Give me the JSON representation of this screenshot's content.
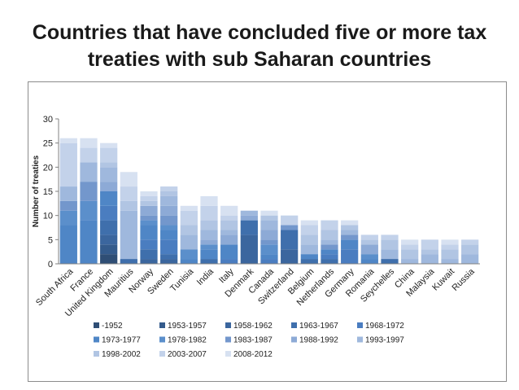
{
  "slide": {
    "title_line1": "Countries that have concluded five or more tax",
    "title_line2": "treaties with sub Saharan countries"
  },
  "chart_data": {
    "type": "bar",
    "stacked": true,
    "ylabel": "Number of treaties",
    "ylim": [
      0,
      30
    ],
    "yticks": [
      0,
      5,
      10,
      15,
      20,
      25,
      30
    ],
    "grid": false,
    "legend_position": "bottom",
    "categories": [
      "South Africa",
      "France",
      "United Kingdom",
      "Mauritius",
      "Norway",
      "Sweden",
      "Tunisia",
      "India",
      "Italy",
      "Denmark",
      "Canada",
      "Switzerland",
      "Belgium",
      "Netherlands",
      "Germany",
      "Romania",
      "Seychelles",
      "China",
      "Malaysia",
      "Kuwait",
      "Russia"
    ],
    "series": [
      {
        "name": "-1952",
        "color": "#2f4e75",
        "values": [
          0,
          0,
          2,
          0,
          0,
          0,
          0,
          0,
          0,
          0,
          0,
          0,
          0,
          0,
          0,
          0,
          0,
          0,
          0,
          0,
          0
        ]
      },
      {
        "name": "1953-1957",
        "color": "#345b8c",
        "values": [
          0,
          0,
          2,
          0,
          0,
          0,
          0,
          0,
          0,
          0,
          0,
          0,
          0,
          0,
          0,
          0,
          0,
          0,
          0,
          0,
          0
        ]
      },
      {
        "name": "1958-1962",
        "color": "#3b669e",
        "values": [
          0,
          0,
          2,
          0,
          1,
          1,
          0,
          0,
          0,
          6,
          0,
          3,
          0,
          0,
          0,
          0,
          0,
          0,
          0,
          0,
          0
        ]
      },
      {
        "name": "1963-1967",
        "color": "#3f6fac",
        "values": [
          0,
          0,
          3,
          1,
          2,
          1,
          0,
          1,
          0,
          3,
          0,
          4,
          1,
          1,
          0,
          0,
          1,
          0,
          0,
          0,
          0
        ]
      },
      {
        "name": "1968-1972",
        "color": "#4a7dc0",
        "values": [
          0,
          0,
          3,
          0,
          2,
          3,
          0,
          0,
          1,
          0,
          1,
          0,
          0,
          1,
          3,
          0,
          0,
          0,
          0,
          0,
          0
        ]
      },
      {
        "name": "1973-1977",
        "color": "#4f86c6",
        "values": [
          8,
          9,
          3,
          0,
          3,
          2,
          1,
          2,
          3,
          0,
          1,
          0,
          1,
          1,
          2,
          1,
          0,
          0,
          0,
          0,
          0
        ]
      },
      {
        "name": "1978-1982",
        "color": "#5b8fcb",
        "values": [
          3,
          4,
          0,
          0,
          1,
          1,
          2,
          1,
          0,
          0,
          2,
          0,
          0,
          0,
          0,
          1,
          0,
          0,
          0,
          0,
          0
        ]
      },
      {
        "name": "1983-1987",
        "color": "#7397cc",
        "values": [
          2,
          4,
          0,
          0,
          1,
          2,
          0,
          0,
          0,
          0,
          1,
          1,
          0,
          1,
          1,
          0,
          0,
          0,
          0,
          0,
          0
        ]
      },
      {
        "name": "1988-1992",
        "color": "#8daad6",
        "values": [
          0,
          0,
          2,
          0,
          2,
          2,
          0,
          1,
          2,
          1,
          2,
          0,
          0,
          0,
          0,
          2,
          0,
          0,
          0,
          0,
          0
        ]
      },
      {
        "name": "1993-1997",
        "color": "#9fb8dd",
        "values": [
          3,
          4,
          3,
          10,
          0,
          2,
          3,
          2,
          1,
          1,
          2,
          0,
          2,
          1,
          1,
          0,
          2,
          1,
          2,
          1,
          2
        ]
      },
      {
        "name": "1998-2002",
        "color": "#b1c5e3",
        "values": [
          0,
          0,
          1,
          2,
          1,
          1,
          2,
          2,
          2,
          0,
          1,
          0,
          2,
          2,
          1,
          1,
          2,
          2,
          1,
          2,
          2
        ]
      },
      {
        "name": "2003-2007",
        "color": "#c3d2ea",
        "values": [
          9,
          3,
          3,
          3,
          1,
          1,
          3,
          3,
          1,
          0,
          0,
          2,
          2,
          2,
          0,
          1,
          1,
          1,
          2,
          1,
          1
        ]
      },
      {
        "name": "2008-2012",
        "color": "#d7e1f1",
        "values": [
          1,
          2,
          1,
          3,
          1,
          0,
          1,
          2,
          2,
          0,
          1,
          0,
          1,
          0,
          1,
          0,
          0,
          1,
          0,
          1,
          0
        ]
      }
    ]
  }
}
